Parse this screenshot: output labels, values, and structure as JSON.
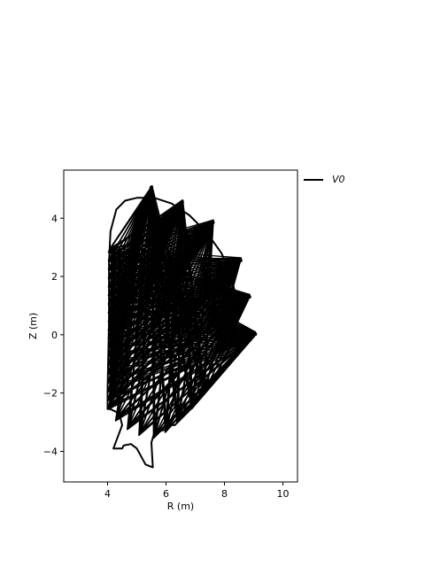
{
  "chart_data": {
    "type": "line",
    "xlabel": "R (m)",
    "ylabel": "Z (m)",
    "xlim": [
      2.5,
      10.5
    ],
    "ylim": [
      -5.05,
      5.65
    ],
    "xticks": [
      4,
      6,
      8,
      10
    ],
    "yticks": [
      -4,
      -2,
      0,
      2,
      4
    ],
    "xtick_labels": [
      "4",
      "6",
      "8",
      "10"
    ],
    "ytick_labels": [
      "−4",
      "−2",
      "0",
      "2",
      "4"
    ],
    "grid": false,
    "legend_position": "outside-top-right",
    "line_color": "#000000",
    "series": [
      {
        "name": "V0",
        "kind": "vessel-outline",
        "points": [
          [
            4.1,
            3.55
          ],
          [
            4.3,
            4.3
          ],
          [
            4.6,
            4.6
          ],
          [
            5.0,
            4.7
          ],
          [
            5.6,
            4.7
          ],
          [
            6.2,
            4.5
          ],
          [
            6.8,
            4.1
          ],
          [
            7.4,
            3.5
          ],
          [
            7.9,
            2.8
          ],
          [
            8.2,
            2.1
          ],
          [
            8.4,
            1.3
          ],
          [
            8.4,
            0.6
          ],
          [
            8.2,
            -0.4
          ],
          [
            7.8,
            -1.2
          ],
          [
            7.3,
            -2.0
          ],
          [
            6.8,
            -2.6
          ],
          [
            6.3,
            -3.1
          ],
          [
            6.0,
            -3.1
          ],
          [
            6.0,
            -3.25
          ],
          [
            5.6,
            -3.35
          ],
          [
            5.5,
            -3.7
          ],
          [
            5.55,
            -4.55
          ],
          [
            5.3,
            -4.45
          ],
          [
            5.0,
            -3.9
          ],
          [
            4.8,
            -3.75
          ],
          [
            4.55,
            -3.8
          ],
          [
            4.5,
            -3.9
          ],
          [
            4.2,
            -3.9
          ],
          [
            4.5,
            -3.1
          ],
          [
            4.4,
            -2.7
          ],
          [
            4.1,
            -2.55
          ],
          [
            4.0,
            -2.55
          ],
          [
            4.0,
            -1.9
          ],
          [
            4.05,
            0.5
          ],
          [
            4.05,
            2.5
          ],
          [
            4.1,
            3.55
          ]
        ]
      }
    ],
    "fans": [
      {
        "origin": [
          5.5,
          5.05
        ],
        "spread": 0.07
      },
      {
        "origin": [
          6.55,
          4.55
        ],
        "spread": 0.08
      },
      {
        "origin": [
          7.6,
          3.85
        ],
        "spread": 0.09
      },
      {
        "origin": [
          8.55,
          2.55
        ],
        "spread": 0.09
      },
      {
        "origin": [
          8.85,
          1.3
        ],
        "spread": 0.08
      },
      {
        "origin": [
          9.05,
          0.02
        ],
        "spread": 0.07
      }
    ],
    "fan_targets_z_on_inner_wall": [
      2.9,
      2.6,
      2.3,
      2.0,
      1.7,
      1.4,
      1.1,
      0.8,
      0.5,
      0.2,
      -0.1,
      -0.4,
      -0.7,
      -1.0,
      -1.3,
      -1.6,
      -1.9,
      -2.2,
      -2.5
    ],
    "fan_targets_lower": [
      [
        4.3,
        -2.9
      ],
      [
        4.7,
        -3.2
      ],
      [
        5.1,
        -3.4
      ],
      [
        5.6,
        -3.5
      ],
      [
        6.0,
        -3.3
      ],
      [
        6.4,
        -2.95
      ],
      [
        6.9,
        -2.5
      ],
      [
        7.3,
        -2.0
      ]
    ]
  }
}
